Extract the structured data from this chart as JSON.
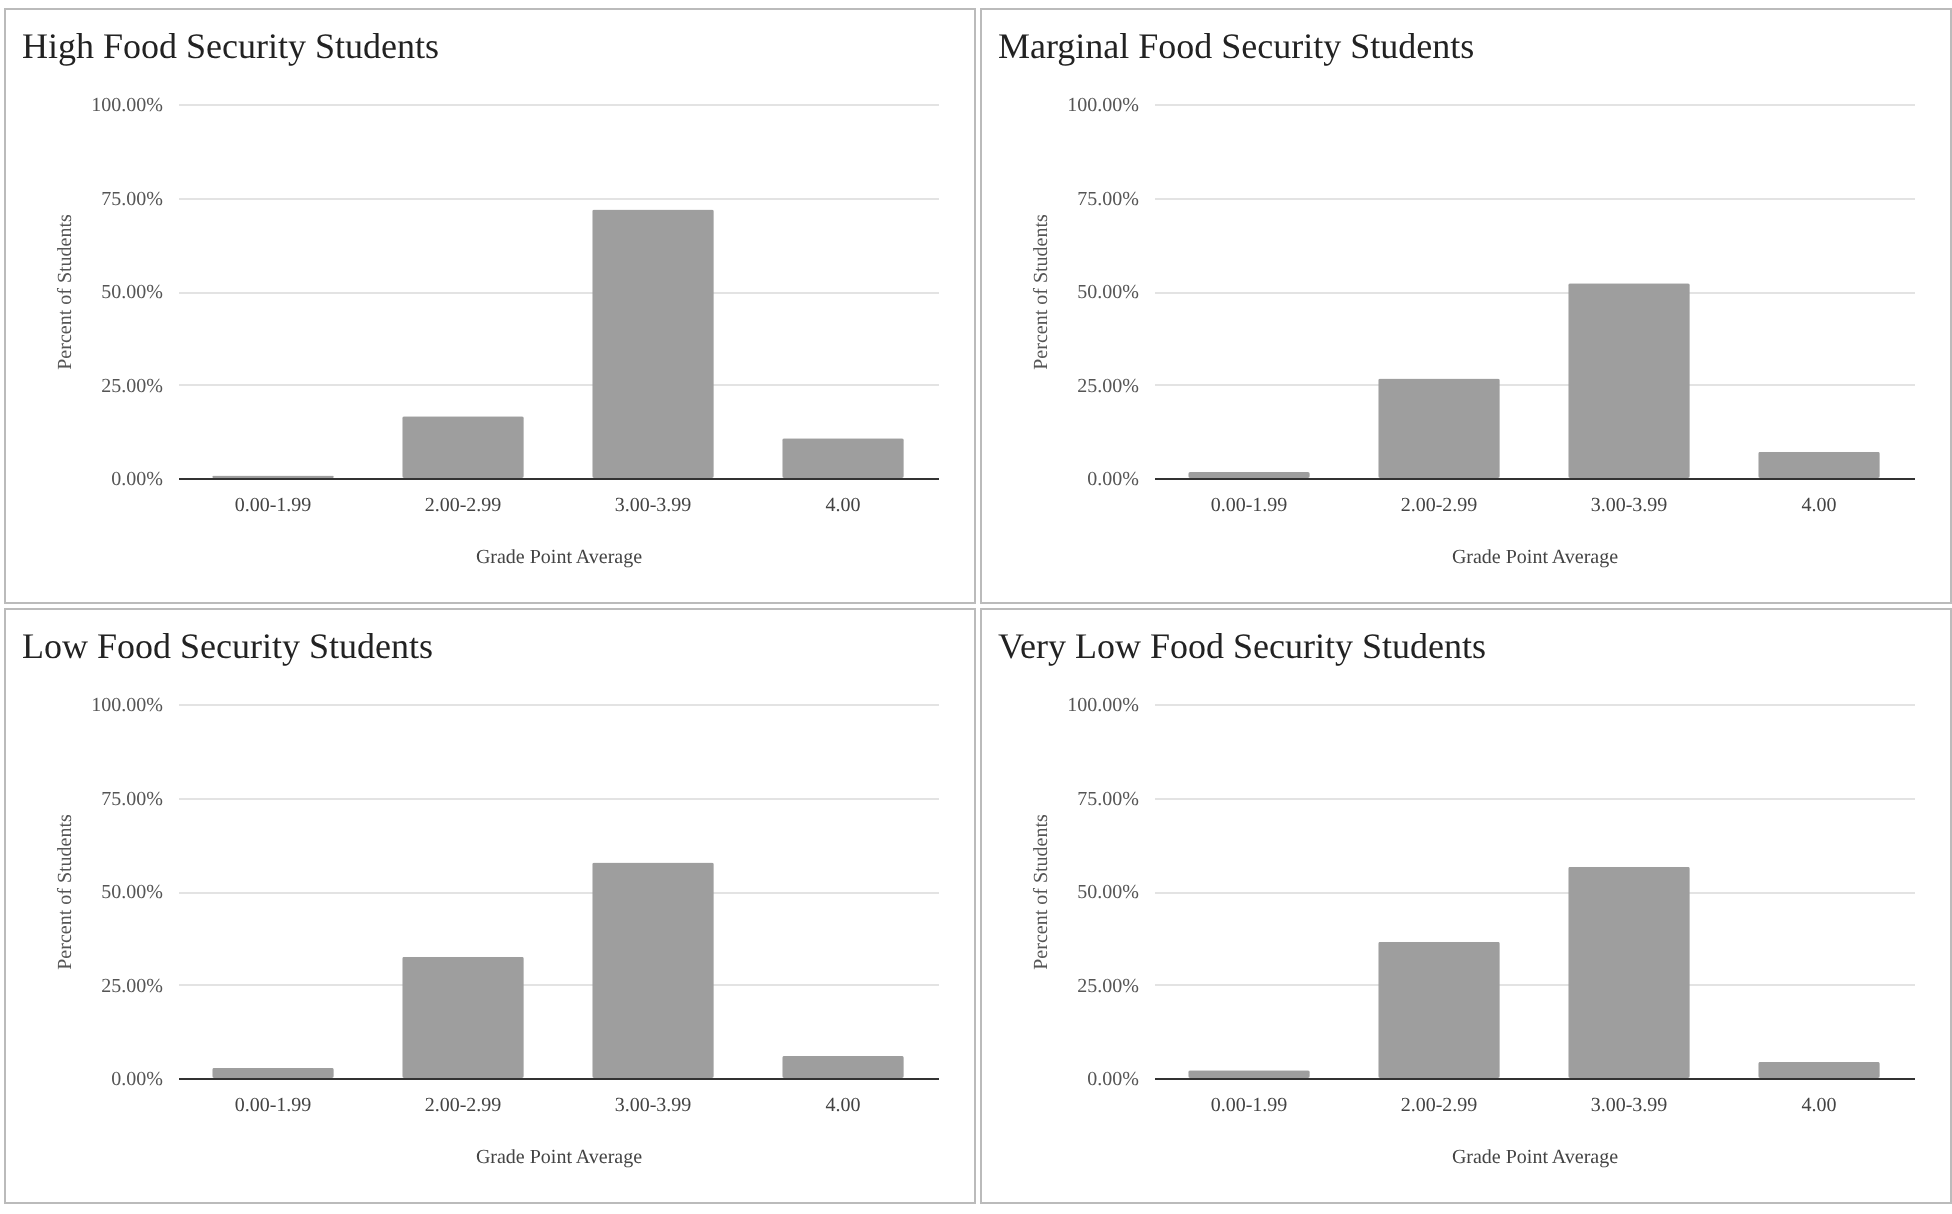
{
  "chart_data": [
    {
      "type": "bar",
      "title": "High Food Security Students",
      "xlabel": "Grade Point Average",
      "ylabel": "Percent of Students",
      "categories": [
        "0.00-1.99",
        "2.00-2.99",
        "3.00-3.99",
        "4.00"
      ],
      "values": [
        0.7,
        16.5,
        71.8,
        10.6
      ],
      "color": "#9e9e9e",
      "ylim": [
        0,
        100
      ],
      "yticks": [
        {
          "value": 0,
          "label": "0.00%"
        },
        {
          "value": 25,
          "label": "25.00%"
        },
        {
          "value": 50,
          "label": "50.00%"
        },
        {
          "value": 75,
          "label": "75.00%"
        },
        {
          "value": 100,
          "label": "100.00%"
        }
      ],
      "grid": "y"
    },
    {
      "type": "bar",
      "title": "Marginal Food Security Students",
      "xlabel": "Grade Point Average",
      "ylabel": "Percent of Students",
      "categories": [
        "0.00-1.99",
        "2.00-2.99",
        "3.00-3.99",
        "4.00"
      ],
      "values": [
        1.6,
        26.6,
        52.1,
        7.0
      ],
      "color": "#9e9e9e",
      "ylim": [
        0,
        100
      ],
      "yticks": [
        {
          "value": 0,
          "label": "0.00%"
        },
        {
          "value": 25,
          "label": "25.00%"
        },
        {
          "value": 50,
          "label": "50.00%"
        },
        {
          "value": 75,
          "label": "75.00%"
        },
        {
          "value": 100,
          "label": "100.00%"
        }
      ],
      "grid": "y"
    },
    {
      "type": "bar",
      "title": "Low Food Security Students",
      "xlabel": "Grade Point Average",
      "ylabel": "Percent of Students",
      "categories": [
        "0.00-1.99",
        "2.00-2.99",
        "3.00-3.99",
        "4.00"
      ],
      "values": [
        2.7,
        32.4,
        57.6,
        5.9
      ],
      "color": "#9e9e9e",
      "ylim": [
        0,
        100
      ],
      "yticks": [
        {
          "value": 0,
          "label": "0.00%"
        },
        {
          "value": 25,
          "label": "25.00%"
        },
        {
          "value": 50,
          "label": "50.00%"
        },
        {
          "value": 75,
          "label": "75.00%"
        },
        {
          "value": 100,
          "label": "100.00%"
        }
      ],
      "grid": "y"
    },
    {
      "type": "bar",
      "title": "Very Low Food Security Students",
      "xlabel": "Grade Point Average",
      "ylabel": "Percent of Students",
      "categories": [
        "0.00-1.99",
        "2.00-2.99",
        "3.00-3.99",
        "4.00"
      ],
      "values": [
        2.1,
        36.4,
        56.5,
        4.3
      ],
      "color": "#9e9e9e",
      "ylim": [
        0,
        100
      ],
      "yticks": [
        {
          "value": 0,
          "label": "0.00%"
        },
        {
          "value": 25,
          "label": "25.00%"
        },
        {
          "value": 50,
          "label": "50.00%"
        },
        {
          "value": 75,
          "label": "75.00%"
        },
        {
          "value": 100,
          "label": "100.00%"
        }
      ],
      "grid": "y"
    }
  ]
}
